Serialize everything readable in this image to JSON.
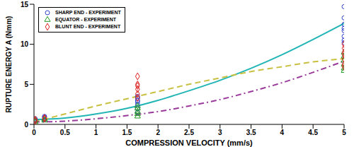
{
  "chart_data": {
    "type": "scatter",
    "x_label": "COMPRESSION VELOCITY (mm/s)",
    "y_label": "RUPTURE ENERGY A (Nmm)",
    "xlim": [
      0,
      5
    ],
    "xticks": [
      0,
      0.5,
      1,
      1.5,
      2,
      2.5,
      3,
      3.5,
      4,
      4.5,
      5
    ],
    "ylim": [
      0,
      15
    ],
    "yticks": [
      0,
      5,
      10,
      15
    ],
    "legend": "upper left",
    "grid": false,
    "series": [
      {
        "name": "SHARP END - EXPERIMENT",
        "type": "scatter",
        "marker": "circle",
        "color": "#3344cc",
        "x": [
          0.02,
          0.02,
          0.02,
          0.17,
          0.17,
          0.17,
          1.67,
          1.67,
          1.67,
          1.67,
          1.67,
          1.67,
          1.67,
          5,
          5,
          5,
          5,
          5,
          5,
          5,
          5
        ],
        "values": [
          0.5,
          0.7,
          0.4,
          0.6,
          0.9,
          1.0,
          1.5,
          2.0,
          2.5,
          3.0,
          3.5,
          3.3,
          2.8,
          14.7,
          13.3,
          12.5,
          12.0,
          11.7,
          11.0,
          10.5,
          10.2
        ]
      },
      {
        "name": "EQUATOR - EXPERIMENT",
        "type": "scatter",
        "marker": "triangle",
        "color": "#229922",
        "x": [
          0.02,
          0.02,
          0.17,
          0.17,
          1.67,
          1.67,
          1.67,
          1.67,
          1.67,
          5,
          5,
          5,
          5,
          5,
          5
        ],
        "values": [
          0.3,
          0.5,
          0.5,
          0.7,
          1.0,
          1.3,
          1.6,
          2.0,
          2.3,
          9.0,
          8.5,
          8.0,
          7.5,
          7.0,
          6.7
        ]
      },
      {
        "name": "BLUNT END - EXPERIMENT",
        "type": "scatter",
        "marker": "diamond",
        "color": "#dd2222",
        "x": [
          0.02,
          0.02,
          0.17,
          0.17,
          1.67,
          1.67,
          1.67,
          1.67,
          1.67,
          1.67,
          5,
          5,
          5,
          5,
          5,
          5,
          5
        ],
        "values": [
          0.4,
          0.6,
          0.7,
          0.8,
          6.0,
          5.0,
          4.4,
          3.8,
          3.3,
          4.8,
          10.0,
          9.5,
          9.0,
          8.2,
          7.5,
          7.2,
          8.7
        ]
      },
      {
        "type": "line",
        "line_style": "solid",
        "color": "#22b5b5",
        "x": [
          0,
          0.5,
          1,
          1.5,
          2,
          2.5,
          3,
          3.5,
          4,
          4.5,
          5
        ],
        "values": [
          0.6,
          0.8,
          1.3,
          2.0,
          3.0,
          4.2,
          5.5,
          7.0,
          8.7,
          10.6,
          12.6
        ]
      },
      {
        "type": "line",
        "line_style": "dashed",
        "color": "#c8c040",
        "x": [
          0,
          0.5,
          1,
          1.5,
          2,
          2.5,
          3,
          3.5,
          4,
          4.5,
          5
        ],
        "values": [
          0.3,
          1.3,
          2.3,
          3.2,
          4.1,
          5.0,
          5.8,
          6.6,
          7.2,
          7.8,
          8.2
        ]
      },
      {
        "type": "line",
        "line_style": "dashdot",
        "color": "#9a3a9a",
        "x": [
          0,
          0.5,
          1,
          1.5,
          2,
          2.5,
          3,
          3.5,
          4,
          4.5,
          5
        ],
        "values": [
          0.3,
          0.4,
          0.7,
          1.1,
          1.6,
          2.3,
          3.1,
          4.1,
          5.2,
          6.5,
          7.9
        ]
      }
    ]
  }
}
